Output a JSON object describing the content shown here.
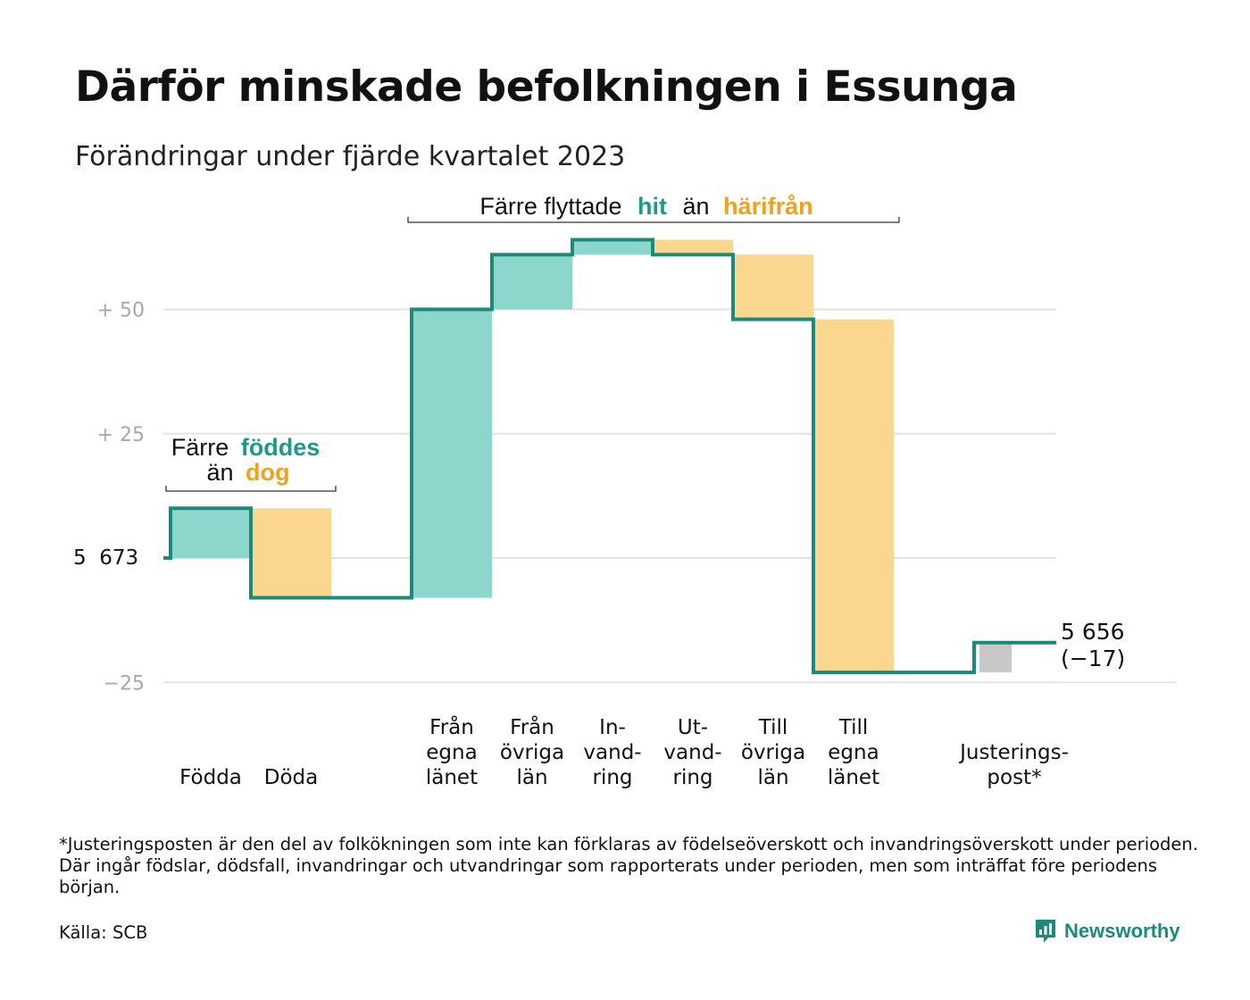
{
  "title": "Därför minskade befolkningen i Essunga",
  "subtitle": "Förändringar under fjärde kvartalet 2023",
  "footnote": "*Justeringsposten är den del av folkökningen som inte kan förklaras av födelseöverskott och invandringsöverskott under perioden. Där ingår födslar, dödsfall, invandringar och utvandringar som rapporterats under perioden, men som inträffat före periodens början.",
  "source": "Källa: SCB",
  "brand": "Newsworthy",
  "colors": {
    "increase": "#8dd6cc",
    "decrease": "#fbd68e",
    "adjustment": "#c8c8c8",
    "line": "#1b8a7a",
    "accent_teal": "#1b9a8a",
    "accent_orange": "#f0a21e",
    "grid": "#e2e2e2",
    "tick": "#a8a8a8"
  },
  "chart_data": {
    "type": "waterfall",
    "base": 5673,
    "base_label": "5  673",
    "end_label": "5 656",
    "end_change": "(−17)",
    "yticks": [
      {
        "value": 50,
        "label": "+  50"
      },
      {
        "value": 25,
        "label": "+  25"
      },
      {
        "value": 0,
        "label": ""
      },
      {
        "value": -25,
        "label": "−25"
      }
    ],
    "categories": [
      {
        "lines": [
          "",
          "",
          "Födda"
        ],
        "value": 10,
        "kind": "increase"
      },
      {
        "lines": [
          "",
          "",
          "Döda"
        ],
        "value": -18,
        "kind": "decrease"
      },
      {
        "lines": [
          "",
          "",
          ""
        ],
        "value": 0,
        "kind": "gap"
      },
      {
        "lines": [
          "Från",
          "egna",
          "länet"
        ],
        "value": 58,
        "kind": "increase"
      },
      {
        "lines": [
          "Från",
          "övriga",
          "län"
        ],
        "value": 11,
        "kind": "increase"
      },
      {
        "lines": [
          "In-",
          "vand-",
          "ring"
        ],
        "value": 3,
        "kind": "increase"
      },
      {
        "lines": [
          "Ut-",
          "vand-",
          "ring"
        ],
        "value": -3,
        "kind": "decrease"
      },
      {
        "lines": [
          "Till",
          "övriga",
          "län"
        ],
        "value": -13,
        "kind": "decrease"
      },
      {
        "lines": [
          "Till",
          "egna",
          "länet"
        ],
        "value": -71,
        "kind": "decrease"
      },
      {
        "lines": [
          "",
          "",
          ""
        ],
        "value": 0,
        "kind": "gap"
      },
      {
        "lines": [
          "",
          "Justerings-",
          "post*"
        ],
        "value": 6,
        "kind": "adjustment"
      }
    ],
    "annotations": [
      {
        "id": "births",
        "pre": "Färre",
        "mid": "föddes",
        "post1": "än",
        "post2": "dog"
      },
      {
        "id": "moves",
        "pre": "Färre flyttade",
        "mid": "hit",
        "post1": "än",
        "post2": "härifrån"
      }
    ]
  }
}
